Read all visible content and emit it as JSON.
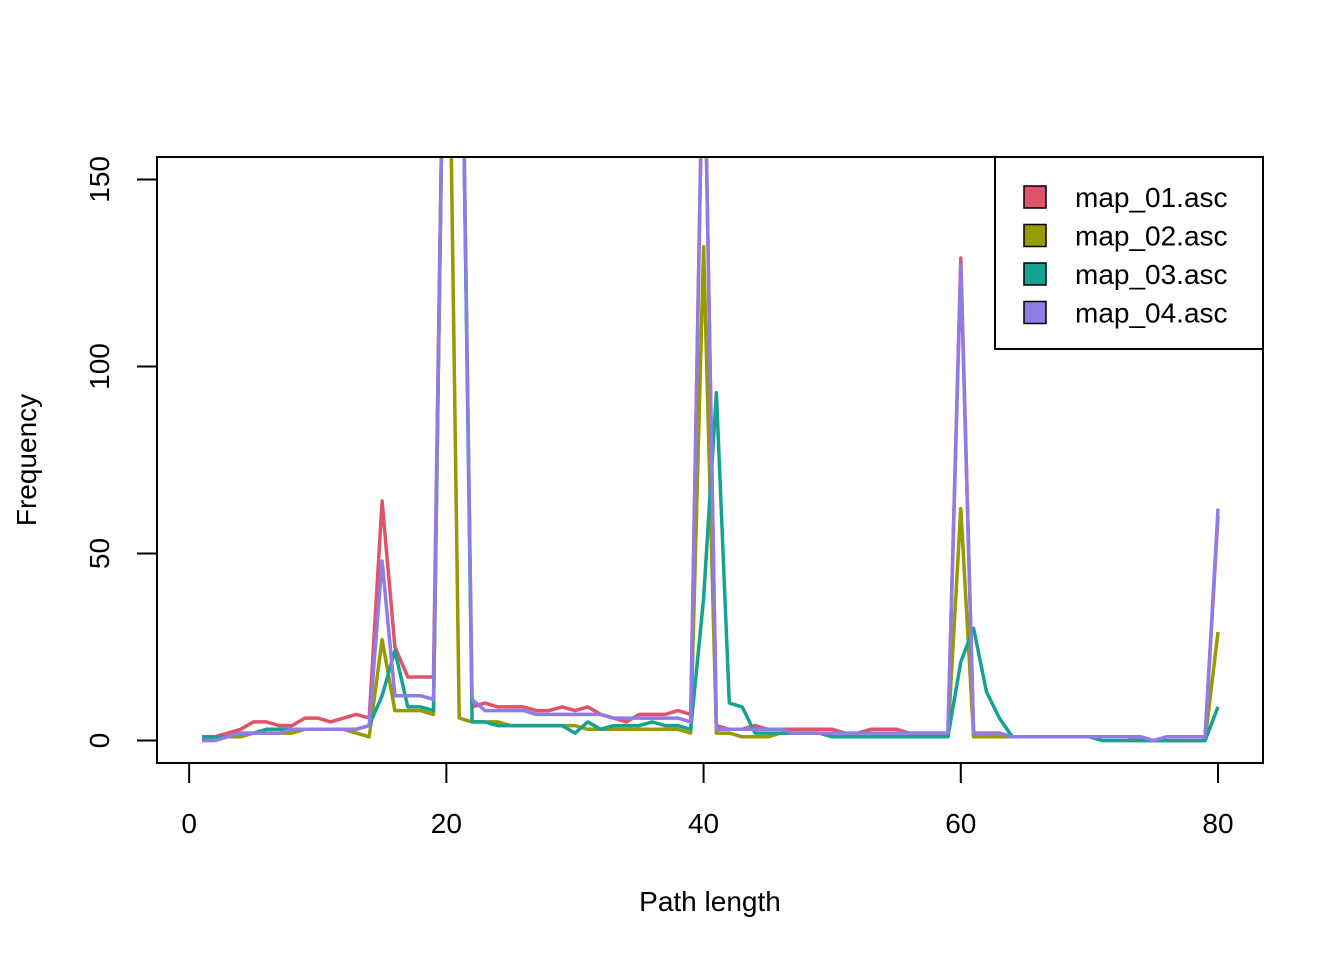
{
  "chart_data": {
    "type": "line",
    "title": "",
    "xlabel": "Path length",
    "ylabel": "Frequency",
    "xlim": [
      -2.5,
      83.5
    ],
    "ylim": [
      -6,
      156
    ],
    "x_ticks": [
      "0",
      "20",
      "40",
      "60",
      "80"
    ],
    "y_ticks": [
      "0",
      "50",
      "100",
      "150"
    ],
    "legend_position": "top-right",
    "grid": false,
    "x": [
      1,
      2,
      3,
      4,
      5,
      6,
      7,
      8,
      9,
      10,
      11,
      12,
      13,
      14,
      15,
      16,
      17,
      18,
      19,
      20,
      21,
      22,
      23,
      24,
      25,
      26,
      27,
      28,
      29,
      30,
      31,
      32,
      33,
      34,
      35,
      36,
      37,
      38,
      39,
      40,
      41,
      42,
      43,
      44,
      45,
      46,
      47,
      48,
      49,
      50,
      51,
      52,
      53,
      54,
      55,
      56,
      57,
      58,
      59,
      60,
      61,
      62,
      63,
      64,
      65,
      66,
      67,
      68,
      69,
      70,
      71,
      72,
      73,
      74,
      75,
      76,
      77,
      78,
      79,
      80
    ],
    "series": [
      {
        "name": "map_01.asc",
        "color": "#DF536B",
        "values": [
          0,
          1,
          2,
          3,
          5,
          5,
          4,
          4,
          6,
          6,
          5,
          6,
          7,
          6,
          64,
          25,
          17,
          17,
          17,
          250,
          250,
          9,
          10,
          9,
          9,
          9,
          8,
          8,
          9,
          8,
          9,
          7,
          6,
          5,
          7,
          7,
          7,
          8,
          7,
          200,
          4,
          3,
          3,
          4,
          3,
          3,
          3,
          3,
          3,
          3,
          2,
          2,
          3,
          3,
          3,
          2,
          2,
          2,
          2,
          129,
          2,
          2,
          2,
          1,
          1,
          1,
          1,
          1,
          1,
          1,
          1,
          1,
          1,
          1,
          0,
          1,
          1,
          1,
          1,
          60
        ]
      },
      {
        "name": "map_02.asc",
        "color": "#979A00",
        "values": [
          1,
          1,
          1,
          1,
          2,
          2,
          2,
          2,
          3,
          3,
          3,
          3,
          2,
          1,
          27,
          8,
          8,
          8,
          7,
          250,
          6,
          5,
          5,
          5,
          4,
          4,
          4,
          4,
          4,
          4,
          3,
          3,
          3,
          3,
          3,
          3,
          3,
          3,
          2,
          132,
          2,
          2,
          1,
          1,
          1,
          2,
          2,
          2,
          2,
          1,
          1,
          1,
          1,
          1,
          1,
          1,
          1,
          1,
          1,
          62,
          1,
          1,
          1,
          1,
          1,
          1,
          1,
          1,
          1,
          1,
          1,
          1,
          1,
          0,
          0,
          0,
          0,
          0,
          0,
          29
        ]
      },
      {
        "name": "map_03.asc",
        "color": "#16A291",
        "values": [
          1,
          1,
          1,
          2,
          2,
          3,
          3,
          3,
          3,
          3,
          3,
          3,
          3,
          4,
          12,
          24,
          9,
          9,
          8,
          250,
          250,
          5,
          5,
          4,
          4,
          4,
          4,
          4,
          4,
          2,
          5,
          3,
          4,
          4,
          4,
          5,
          4,
          4,
          3,
          38,
          93,
          10,
          9,
          2,
          2,
          2,
          2,
          2,
          2,
          1,
          1,
          1,
          1,
          1,
          1,
          1,
          1,
          1,
          1,
          21,
          30,
          13,
          6,
          1,
          1,
          1,
          1,
          1,
          1,
          1,
          0,
          0,
          0,
          0,
          0,
          0,
          0,
          0,
          0,
          9
        ]
      },
      {
        "name": "map_04.asc",
        "color": "#8F7CE5",
        "values": [
          0,
          0,
          1,
          2,
          2,
          2,
          2,
          3,
          3,
          3,
          3,
          3,
          3,
          4,
          48,
          12,
          12,
          12,
          11,
          250,
          250,
          11,
          8,
          8,
          8,
          8,
          7,
          7,
          7,
          7,
          7,
          7,
          6,
          6,
          6,
          6,
          6,
          6,
          5,
          200,
          3,
          3,
          3,
          3,
          3,
          3,
          2,
          2,
          2,
          2,
          2,
          2,
          2,
          2,
          2,
          2,
          2,
          2,
          2,
          127,
          2,
          2,
          2,
          1,
          1,
          1,
          1,
          1,
          1,
          1,
          1,
          1,
          1,
          1,
          0,
          1,
          1,
          1,
          1,
          62
        ]
      }
    ]
  }
}
